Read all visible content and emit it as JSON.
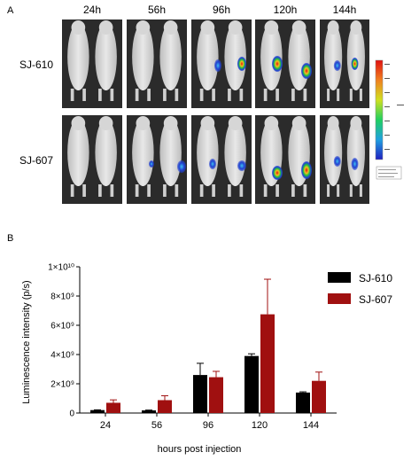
{
  "panel_a": {
    "label": "A",
    "timepoints": [
      "24h",
      "56h",
      "96h",
      "120h",
      "144h"
    ],
    "rows": [
      "SJ-610",
      "SJ-607"
    ]
  },
  "panel_b": {
    "label": "B"
  },
  "chart_data": {
    "type": "bar",
    "categories": [
      "24",
      "56",
      "96",
      "120",
      "144"
    ],
    "series": [
      {
        "name": "SJ-610",
        "color": "#000000",
        "values": [
          200000000.0,
          180000000.0,
          2600000000.0,
          3900000000.0,
          1400000000.0
        ],
        "errors": [
          20000000.0,
          20000000.0,
          800000000.0,
          150000000.0,
          50000000.0
        ]
      },
      {
        "name": "SJ-607",
        "color": "#a01010",
        "values": [
          700000000.0,
          880000000.0,
          2450000000.0,
          6750000000.0,
          2200000000.0
        ],
        "errors": [
          200000000.0,
          300000000.0,
          400000000.0,
          2400000000.0,
          600000000.0
        ]
      }
    ],
    "xlabel": "hours post injection",
    "ylabel": "Luminescence intensity (p/s)",
    "ylim": [
      0,
      10000000000.0
    ],
    "yticks": [
      "0",
      "2×10⁹",
      "4×10⁹",
      "6×10⁹",
      "8×10⁹",
      "1×10¹⁰"
    ],
    "legend_position": "top-right"
  }
}
